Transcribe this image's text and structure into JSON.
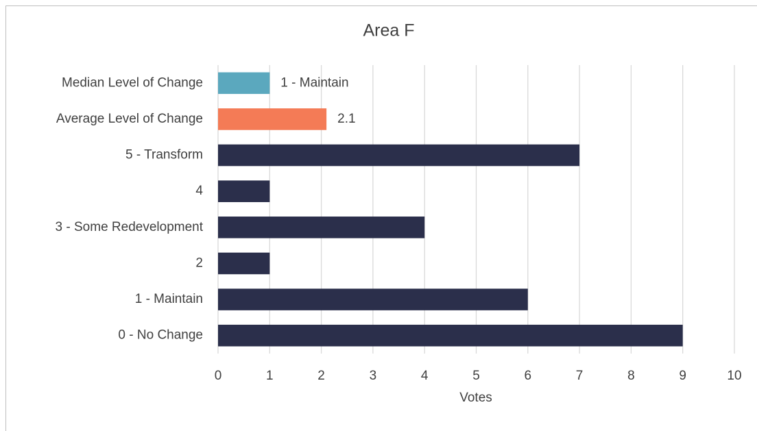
{
  "chart_data": {
    "type": "bar",
    "orientation": "horizontal",
    "title": "Area F",
    "xlabel": "Votes",
    "categories": [
      "Median Level of Change",
      "Average Level of Change",
      "5 - Transform",
      "4",
      "3 - Some Redevelopment",
      "2",
      "1 - Maintain",
      "0 - No Change"
    ],
    "values": [
      1,
      2.1,
      7,
      1,
      4,
      1,
      6,
      9
    ],
    "value_labels": [
      "1 - Maintain",
      "2.1",
      null,
      null,
      null,
      null,
      null,
      null
    ],
    "colors": [
      "#5ba8be",
      "#f47b56",
      "#2b2f4b",
      "#2b2f4b",
      "#2b2f4b",
      "#2b2f4b",
      "#2b2f4b",
      "#2b2f4b"
    ],
    "xlim": [
      0,
      10
    ],
    "xticks": [
      0,
      1,
      2,
      3,
      4,
      5,
      6,
      7,
      8,
      9,
      10
    ],
    "grid": true
  }
}
